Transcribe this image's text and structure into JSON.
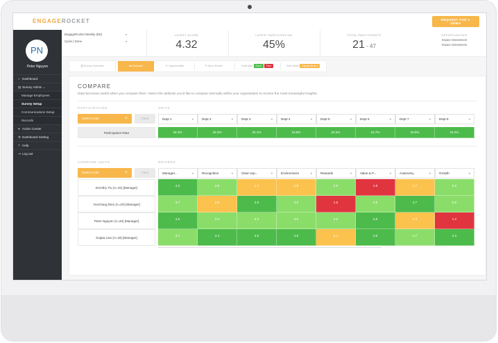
{
  "app": {
    "brand_a": "ENGAGE",
    "brand_b": "ROCKET",
    "demo_button": "REQUEST FOR A DEMO"
  },
  "sidebar": {
    "avatar_initials": "PN",
    "user_name": "Peter Nguyen",
    "items": [
      {
        "icon": "home-icon",
        "glyph": "⌂",
        "label": "Dashboard",
        "sub": false,
        "active": false
      },
      {
        "icon": "briefcase-icon",
        "glyph": "▤",
        "label": "Survey Admin ⌄",
        "sub": false,
        "active": false
      },
      {
        "icon": "",
        "glyph": "",
        "label": "Manage Employees",
        "sub": true,
        "active": false
      },
      {
        "icon": "",
        "glyph": "",
        "label": "Survey Setup",
        "sub": true,
        "active": true
      },
      {
        "icon": "",
        "glyph": "",
        "label": "Communications Setup",
        "sub": true,
        "active": false
      },
      {
        "icon": "",
        "glyph": "",
        "label": "Records",
        "sub": true,
        "active": false
      },
      {
        "icon": "pin-icon",
        "glyph": "●",
        "label": "Action Center",
        "sub": false,
        "active": false
      },
      {
        "icon": "gear-icon",
        "glyph": "⚙",
        "label": "Dashboard Setting",
        "sub": false,
        "active": false
      },
      {
        "icon": "help-icon",
        "glyph": "?",
        "label": "Help",
        "sub": false,
        "active": false
      },
      {
        "icon": "logout-icon",
        "glyph": "⇥",
        "label": "Log out",
        "sub": false,
        "active": false
      }
    ]
  },
  "header": {
    "survey_name": "EngageRocket Weekly (EE)",
    "cycle": "Cycle | Done",
    "stats": [
      {
        "label": "LATEST SCORE",
        "value": "4.32",
        "suffix": ""
      },
      {
        "label": "LATEST PARTICIPATION",
        "value": "45%",
        "suffix": ""
      },
      {
        "label": "TOTAL PARTICIPANTS",
        "value": "21",
        "suffix": " - 47"
      }
    ],
    "opportunities": {
      "label": "OPPORTUNITIES",
      "items": [
        "Impact Assessment",
        "Impact Assessment"
      ]
    }
  },
  "tabs": [
    {
      "label": "Survey Overview",
      "active": false
    },
    {
      "label": "Compare",
      "active": true
    },
    {
      "label": "Opportunities",
      "active": false
    },
    {
      "label": "Open Ended",
      "active": false
    }
  ],
  "legend": {
    "heatmap_label": "Heat Map",
    "good": "Good",
    "poor": "Poor",
    "view_label": "View Mode",
    "view_value": "Display Mode ▾",
    "colors": {
      "good": "#4bbd4a",
      "poor": "#e0343f",
      "view": "#f8b74b"
    }
  },
  "compare": {
    "title": "COMPARE",
    "description": "Data becomes useful when you compare them. Select the attribute you'd like to compare internally within your organisation to receive the most meaningful insights.",
    "participation_label": "PARTICIPATION",
    "units_label": "UNITS",
    "select_units": "Select Units",
    "clear": "Clear",
    "participation_row_label": "Participation Rate",
    "departments": [
      "Dept 1",
      "Dept 2",
      "Dept 3",
      "Dept 4",
      "Dept 5",
      "Dept 6",
      "Dept 7",
      "Dept 8"
    ],
    "participation_values": [
      "18.3%",
      "18.3%",
      "20.1%",
      "19.8%",
      "24.5%",
      "16.7%",
      "19.8%",
      "19.2%"
    ],
    "compare_units_label": "COMPARE UNITS",
    "drivers_label": "DRIVERS",
    "drivers": [
      "Manager...",
      "Recognition",
      "Clear exp...",
      "Environment",
      "Rewards",
      "Value & P...",
      "Autonomy",
      "Growth"
    ],
    "rows": [
      {
        "label": "Dorothy Yiu (n=15) [Manager]",
        "values": [
          "4.3",
          "3.8",
          "2.7",
          "2.9",
          "3.5",
          "1.8",
          "2.7",
          "3.2"
        ]
      },
      {
        "label": "Yunchang Dieu (n=20) [Manager]",
        "values": [
          "3.7",
          "2.8",
          "4.6",
          "3.6",
          "1.5",
          "3.5",
          "4.7",
          "3.6"
        ]
      },
      {
        "label": "Peter Nguyen (n=20) [Manager]",
        "values": [
          "4.5",
          "3.2",
          "3.2",
          "3.6",
          "3.5",
          "4.6",
          "2.3",
          "1.2"
        ]
      },
      {
        "label": "Sujata Liao (n=18) [Manager]",
        "values": [
          "3.7",
          "4.4",
          "4.6",
          "4.6",
          "2.4",
          "4.5",
          "3.7",
          "4.4"
        ]
      }
    ],
    "colors": {
      "green_dark": "#4dbb4b",
      "green_light": "#8bdd6a",
      "amber": "#fbc24d",
      "red": "#e0343f"
    }
  }
}
